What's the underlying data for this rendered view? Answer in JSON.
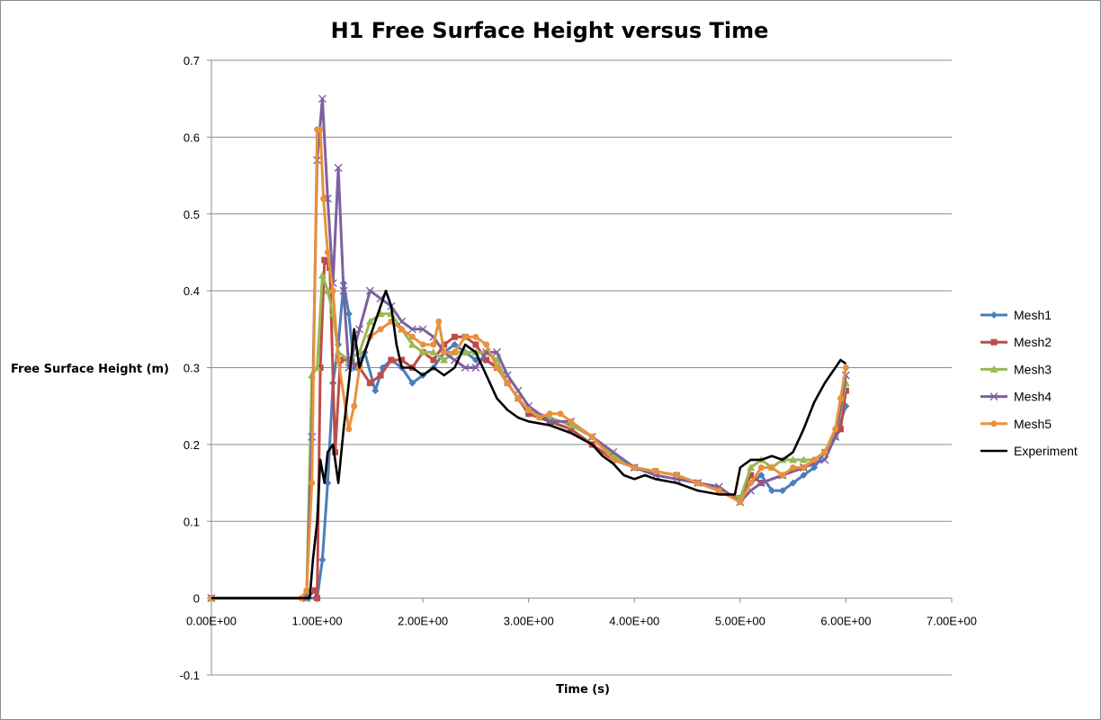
{
  "chart_data": {
    "type": "line",
    "title": "H1 Free Surface Height versus Time",
    "xlabel": "Time (s)",
    "ylabel": "Free Surface Height (m)",
    "xlim": [
      0,
      7
    ],
    "ylim": [
      -0.1,
      0.7
    ],
    "x_ticks": [
      0,
      1,
      2,
      3,
      4,
      5,
      6,
      7
    ],
    "x_tick_labels": [
      "0.00E+00",
      "1.00E+00",
      "2.00E+00",
      "3.00E+00",
      "4.00E+00",
      "5.00E+00",
      "6.00E+00",
      "7.00E+00"
    ],
    "y_ticks": [
      -0.1,
      0,
      0.1,
      0.2,
      0.3,
      0.4,
      0.5,
      0.6,
      0.7
    ],
    "y_tick_labels": [
      "-0.1",
      "0",
      "0.1",
      "0.2",
      "0.3",
      "0.4",
      "0.5",
      "0.6",
      "0.7"
    ],
    "grid": "horizontal",
    "legend_position": "right",
    "series": [
      {
        "name": "Mesh1",
        "color": "#4a7ebb",
        "marker": "diamond",
        "points": [
          [
            0,
            0
          ],
          [
            0.9,
            0
          ],
          [
            1.0,
            0
          ],
          [
            1.05,
            0.05
          ],
          [
            1.1,
            0.15
          ],
          [
            1.15,
            0.28
          ],
          [
            1.2,
            0.33
          ],
          [
            1.25,
            0.41
          ],
          [
            1.3,
            0.37
          ],
          [
            1.35,
            0.3
          ],
          [
            1.45,
            0.32
          ],
          [
            1.55,
            0.27
          ],
          [
            1.62,
            0.3
          ],
          [
            1.7,
            0.31
          ],
          [
            1.8,
            0.3
          ],
          [
            1.9,
            0.28
          ],
          [
            2.0,
            0.29
          ],
          [
            2.1,
            0.3
          ],
          [
            2.2,
            0.32
          ],
          [
            2.3,
            0.33
          ],
          [
            2.4,
            0.32
          ],
          [
            2.5,
            0.31
          ],
          [
            2.6,
            0.31
          ],
          [
            2.7,
            0.3
          ],
          [
            2.8,
            0.28
          ],
          [
            2.9,
            0.26
          ],
          [
            3.0,
            0.24
          ],
          [
            3.2,
            0.23
          ],
          [
            3.4,
            0.22
          ],
          [
            3.6,
            0.2
          ],
          [
            3.8,
            0.18
          ],
          [
            4.0,
            0.17
          ],
          [
            4.2,
            0.165
          ],
          [
            4.4,
            0.16
          ],
          [
            4.6,
            0.15
          ],
          [
            4.8,
            0.14
          ],
          [
            5.0,
            0.13
          ],
          [
            5.1,
            0.15
          ],
          [
            5.2,
            0.16
          ],
          [
            5.3,
            0.14
          ],
          [
            5.4,
            0.14
          ],
          [
            5.5,
            0.15
          ],
          [
            5.6,
            0.16
          ],
          [
            5.7,
            0.17
          ],
          [
            5.8,
            0.19
          ],
          [
            5.9,
            0.21
          ],
          [
            6.0,
            0.25
          ]
        ]
      },
      {
        "name": "Mesh2",
        "color": "#be4b48",
        "marker": "square",
        "points": [
          [
            0,
            0
          ],
          [
            0.9,
            0
          ],
          [
            0.98,
            0.01
          ],
          [
            1.0,
            0
          ],
          [
            1.03,
            0.3
          ],
          [
            1.07,
            0.44
          ],
          [
            1.12,
            0.43
          ],
          [
            1.17,
            0.19
          ],
          [
            1.22,
            0.31
          ],
          [
            1.3,
            0.31
          ],
          [
            1.4,
            0.3
          ],
          [
            1.5,
            0.28
          ],
          [
            1.6,
            0.29
          ],
          [
            1.7,
            0.31
          ],
          [
            1.8,
            0.31
          ],
          [
            1.9,
            0.3
          ],
          [
            2.0,
            0.32
          ],
          [
            2.1,
            0.31
          ],
          [
            2.2,
            0.33
          ],
          [
            2.3,
            0.34
          ],
          [
            2.4,
            0.34
          ],
          [
            2.5,
            0.33
          ],
          [
            2.6,
            0.31
          ],
          [
            2.7,
            0.3
          ],
          [
            2.8,
            0.28
          ],
          [
            2.9,
            0.26
          ],
          [
            3.0,
            0.24
          ],
          [
            3.2,
            0.23
          ],
          [
            3.4,
            0.22
          ],
          [
            3.6,
            0.2
          ],
          [
            3.8,
            0.18
          ],
          [
            4.0,
            0.17
          ],
          [
            4.2,
            0.165
          ],
          [
            4.4,
            0.16
          ],
          [
            4.6,
            0.15
          ],
          [
            4.8,
            0.14
          ],
          [
            5.0,
            0.13
          ],
          [
            5.1,
            0.16
          ],
          [
            5.2,
            0.15
          ],
          [
            5.4,
            0.16
          ],
          [
            5.6,
            0.17
          ],
          [
            5.8,
            0.19
          ],
          [
            5.95,
            0.22
          ],
          [
            6.0,
            0.27
          ]
        ]
      },
      {
        "name": "Mesh3",
        "color": "#98b954",
        "marker": "triangle",
        "points": [
          [
            0,
            0
          ],
          [
            0.9,
            0
          ],
          [
            0.95,
            0.29
          ],
          [
            1.0,
            0.3
          ],
          [
            1.05,
            0.42
          ],
          [
            1.1,
            0.4
          ],
          [
            1.15,
            0.37
          ],
          [
            1.2,
            0.32
          ],
          [
            1.3,
            0.31
          ],
          [
            1.4,
            0.32
          ],
          [
            1.5,
            0.36
          ],
          [
            1.6,
            0.37
          ],
          [
            1.7,
            0.37
          ],
          [
            1.8,
            0.35
          ],
          [
            1.9,
            0.33
          ],
          [
            2.0,
            0.32
          ],
          [
            2.1,
            0.32
          ],
          [
            2.2,
            0.31
          ],
          [
            2.3,
            0.32
          ],
          [
            2.4,
            0.32
          ],
          [
            2.5,
            0.32
          ],
          [
            2.6,
            0.32
          ],
          [
            2.7,
            0.31
          ],
          [
            2.8,
            0.28
          ],
          [
            2.9,
            0.26
          ],
          [
            3.0,
            0.245
          ],
          [
            3.2,
            0.235
          ],
          [
            3.4,
            0.225
          ],
          [
            3.6,
            0.21
          ],
          [
            3.8,
            0.185
          ],
          [
            4.0,
            0.17
          ],
          [
            4.2,
            0.165
          ],
          [
            4.4,
            0.16
          ],
          [
            4.6,
            0.15
          ],
          [
            4.8,
            0.14
          ],
          [
            5.0,
            0.13
          ],
          [
            5.1,
            0.17
          ],
          [
            5.2,
            0.18
          ],
          [
            5.3,
            0.17
          ],
          [
            5.4,
            0.18
          ],
          [
            5.5,
            0.18
          ],
          [
            5.6,
            0.18
          ],
          [
            5.7,
            0.18
          ],
          [
            5.8,
            0.19
          ],
          [
            5.9,
            0.21
          ],
          [
            6.0,
            0.28
          ]
        ]
      },
      {
        "name": "Mesh4",
        "color": "#7d60a0",
        "marker": "x",
        "points": [
          [
            0,
            0
          ],
          [
            0.9,
            0
          ],
          [
            0.95,
            0.21
          ],
          [
            1.0,
            0.57
          ],
          [
            1.05,
            0.65
          ],
          [
            1.1,
            0.52
          ],
          [
            1.15,
            0.41
          ],
          [
            1.2,
            0.56
          ],
          [
            1.25,
            0.4
          ],
          [
            1.3,
            0.3
          ],
          [
            1.4,
            0.35
          ],
          [
            1.5,
            0.4
          ],
          [
            1.6,
            0.39
          ],
          [
            1.7,
            0.38
          ],
          [
            1.8,
            0.36
          ],
          [
            1.9,
            0.35
          ],
          [
            2.0,
            0.35
          ],
          [
            2.1,
            0.34
          ],
          [
            2.2,
            0.32
          ],
          [
            2.3,
            0.31
          ],
          [
            2.4,
            0.3
          ],
          [
            2.5,
            0.3
          ],
          [
            2.6,
            0.32
          ],
          [
            2.7,
            0.32
          ],
          [
            2.8,
            0.29
          ],
          [
            2.9,
            0.27
          ],
          [
            3.0,
            0.25
          ],
          [
            3.2,
            0.23
          ],
          [
            3.4,
            0.23
          ],
          [
            3.6,
            0.21
          ],
          [
            3.8,
            0.19
          ],
          [
            4.0,
            0.17
          ],
          [
            4.2,
            0.16
          ],
          [
            4.4,
            0.155
          ],
          [
            4.6,
            0.15
          ],
          [
            4.8,
            0.145
          ],
          [
            5.0,
            0.125
          ],
          [
            5.1,
            0.14
          ],
          [
            5.2,
            0.15
          ],
          [
            5.4,
            0.16
          ],
          [
            5.6,
            0.17
          ],
          [
            5.8,
            0.18
          ],
          [
            5.9,
            0.21
          ],
          [
            6.0,
            0.29
          ]
        ]
      },
      {
        "name": "Mesh5",
        "color": "#e8913d",
        "marker": "circle",
        "points": [
          [
            0,
            0
          ],
          [
            0.85,
            0
          ],
          [
            0.9,
            0.01
          ],
          [
            0.95,
            0.15
          ],
          [
            1.0,
            0.61
          ],
          [
            1.03,
            0.61
          ],
          [
            1.06,
            0.52
          ],
          [
            1.1,
            0.45
          ],
          [
            1.15,
            0.4
          ],
          [
            1.2,
            0.31
          ],
          [
            1.3,
            0.22
          ],
          [
            1.35,
            0.25
          ],
          [
            1.4,
            0.3
          ],
          [
            1.5,
            0.34
          ],
          [
            1.6,
            0.35
          ],
          [
            1.7,
            0.36
          ],
          [
            1.8,
            0.35
          ],
          [
            1.9,
            0.34
          ],
          [
            2.0,
            0.33
          ],
          [
            2.1,
            0.33
          ],
          [
            2.15,
            0.36
          ],
          [
            2.2,
            0.32
          ],
          [
            2.3,
            0.32
          ],
          [
            2.4,
            0.34
          ],
          [
            2.5,
            0.34
          ],
          [
            2.6,
            0.33
          ],
          [
            2.7,
            0.3
          ],
          [
            2.8,
            0.28
          ],
          [
            2.9,
            0.26
          ],
          [
            3.0,
            0.245
          ],
          [
            3.1,
            0.235
          ],
          [
            3.2,
            0.24
          ],
          [
            3.3,
            0.24
          ],
          [
            3.4,
            0.23
          ],
          [
            3.6,
            0.21
          ],
          [
            3.8,
            0.18
          ],
          [
            4.0,
            0.17
          ],
          [
            4.2,
            0.165
          ],
          [
            4.4,
            0.16
          ],
          [
            4.6,
            0.15
          ],
          [
            4.8,
            0.14
          ],
          [
            5.0,
            0.125
          ],
          [
            5.1,
            0.15
          ],
          [
            5.2,
            0.17
          ],
          [
            5.3,
            0.17
          ],
          [
            5.4,
            0.16
          ],
          [
            5.5,
            0.17
          ],
          [
            5.6,
            0.17
          ],
          [
            5.7,
            0.18
          ],
          [
            5.8,
            0.19
          ],
          [
            5.9,
            0.22
          ],
          [
            5.95,
            0.26
          ],
          [
            6.0,
            0.3
          ]
        ]
      },
      {
        "name": "Experiment",
        "color": "#000000",
        "marker": "none",
        "points": [
          [
            0,
            0
          ],
          [
            0.93,
            0
          ],
          [
            0.96,
            0.05
          ],
          [
            1.0,
            0.1
          ],
          [
            1.03,
            0.18
          ],
          [
            1.07,
            0.15
          ],
          [
            1.1,
            0.19
          ],
          [
            1.15,
            0.2
          ],
          [
            1.2,
            0.15
          ],
          [
            1.25,
            0.22
          ],
          [
            1.3,
            0.28
          ],
          [
            1.35,
            0.35
          ],
          [
            1.4,
            0.3
          ],
          [
            1.45,
            0.32
          ],
          [
            1.5,
            0.34
          ],
          [
            1.55,
            0.36
          ],
          [
            1.6,
            0.38
          ],
          [
            1.65,
            0.4
          ],
          [
            1.7,
            0.38
          ],
          [
            1.75,
            0.33
          ],
          [
            1.8,
            0.3
          ],
          [
            1.9,
            0.3
          ],
          [
            2.0,
            0.29
          ],
          [
            2.1,
            0.3
          ],
          [
            2.2,
            0.29
          ],
          [
            2.3,
            0.3
          ],
          [
            2.4,
            0.33
          ],
          [
            2.5,
            0.32
          ],
          [
            2.6,
            0.29
          ],
          [
            2.7,
            0.26
          ],
          [
            2.8,
            0.245
          ],
          [
            2.9,
            0.235
          ],
          [
            3.0,
            0.23
          ],
          [
            3.2,
            0.225
          ],
          [
            3.4,
            0.215
          ],
          [
            3.6,
            0.2
          ],
          [
            3.7,
            0.185
          ],
          [
            3.8,
            0.175
          ],
          [
            3.9,
            0.16
          ],
          [
            4.0,
            0.155
          ],
          [
            4.1,
            0.16
          ],
          [
            4.2,
            0.155
          ],
          [
            4.4,
            0.15
          ],
          [
            4.6,
            0.14
          ],
          [
            4.8,
            0.135
          ],
          [
            4.95,
            0.135
          ],
          [
            5.0,
            0.17
          ],
          [
            5.1,
            0.18
          ],
          [
            5.2,
            0.18
          ],
          [
            5.3,
            0.185
          ],
          [
            5.4,
            0.18
          ],
          [
            5.5,
            0.19
          ],
          [
            5.6,
            0.22
          ],
          [
            5.7,
            0.255
          ],
          [
            5.8,
            0.28
          ],
          [
            5.9,
            0.3
          ],
          [
            5.95,
            0.31
          ],
          [
            6.0,
            0.305
          ]
        ]
      }
    ]
  }
}
